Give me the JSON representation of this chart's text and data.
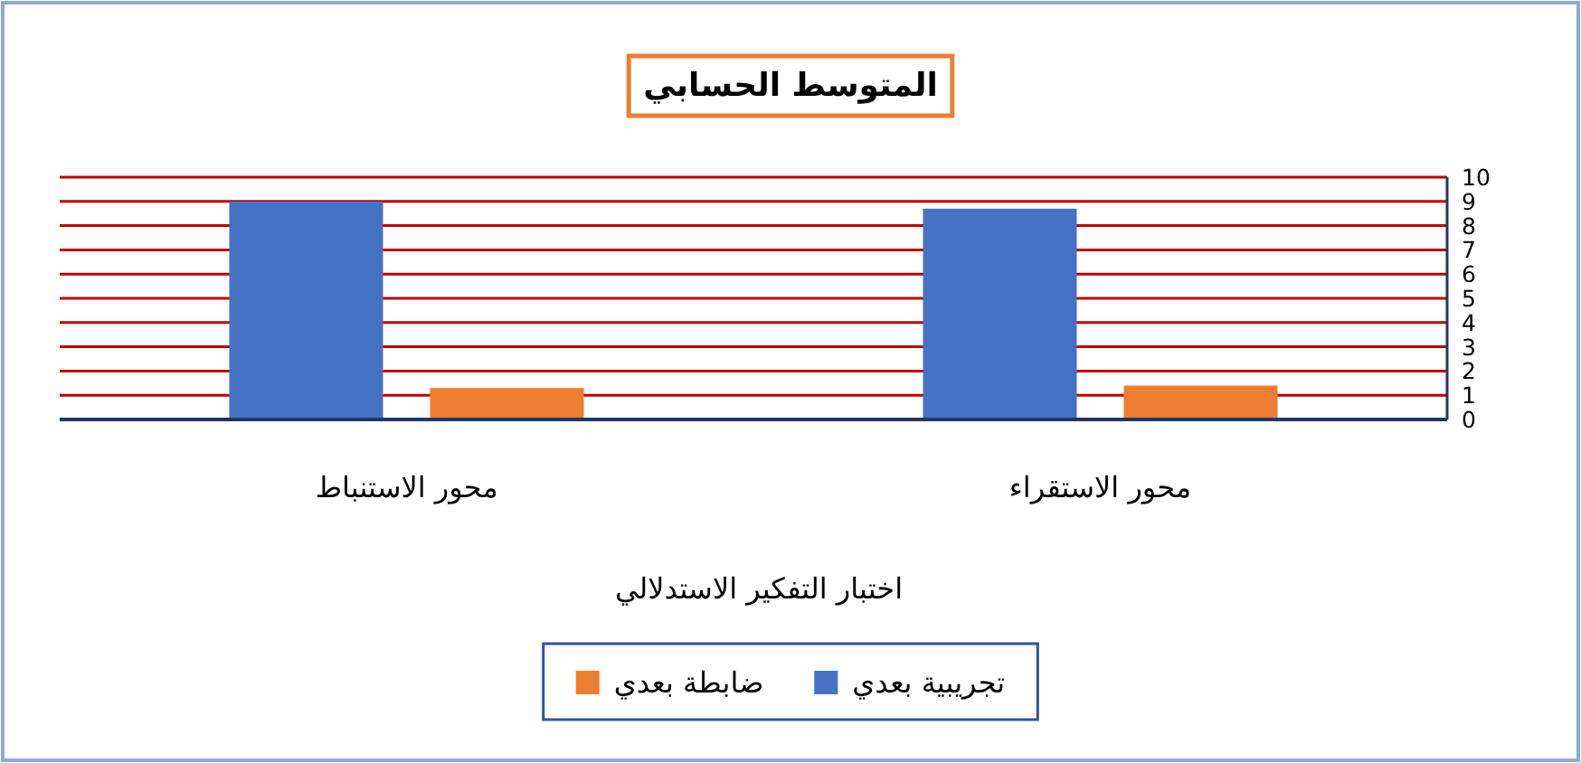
{
  "chart_data": {
    "type": "bar",
    "title": "المتوسط الحسابي",
    "xlabel": "اختبار التفكير الاستدلالي",
    "categories": [
      "محور الاستنباط",
      "محور الاستقراء"
    ],
    "series": [
      {
        "name": "تجريبية بعدي",
        "color": "#4472c4",
        "values": [
          9.0,
          8.7
        ]
      },
      {
        "name": "ضابطة بعدي",
        "color": "#ed7d31",
        "values": [
          1.3,
          1.4
        ]
      }
    ],
    "ylim": [
      0,
      10
    ],
    "yticks": [
      0,
      1,
      2,
      3,
      4,
      5,
      6,
      7,
      8,
      9,
      10
    ],
    "grid": "y",
    "legend": "bottom"
  }
}
